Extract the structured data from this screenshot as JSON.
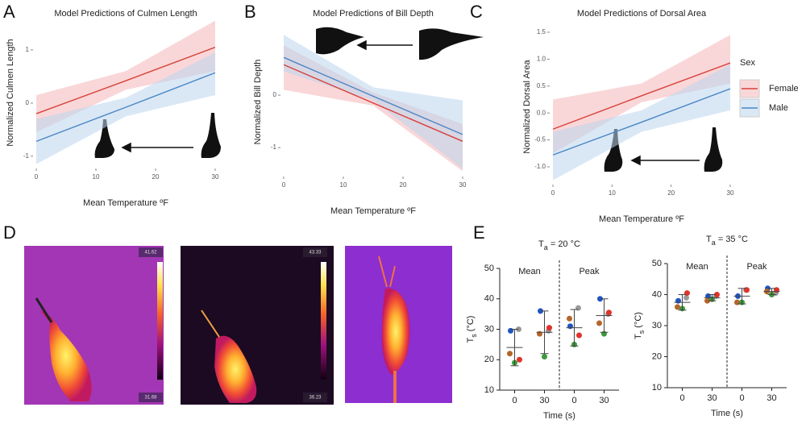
{
  "panel_labels": [
    "A",
    "B",
    "C",
    "D",
    "E"
  ],
  "thermal_images": [
    {
      "max_label": "41.62",
      "min_label": "31.68"
    },
    {
      "max_label": "43.33",
      "min_label": "36.23"
    }
  ],
  "chart_data": [
    {
      "type": "line",
      "title": "Model Predictions of Culmen Length",
      "x_label": "Mean Temperature ºF",
      "y_label": "Normalized Culmen Length",
      "x": [
        0,
        15,
        30
      ],
      "xlim": [
        0,
        30
      ],
      "xticks": [
        0,
        10,
        20,
        30
      ],
      "ylim": [
        -1.17,
        1.56
      ],
      "yticks": [
        -1,
        0,
        1
      ],
      "series": [
        {
          "color": "#d9413c",
          "band_color": "#f4b6b8",
          "values": [
            -0.2,
            0.42,
            1.05
          ],
          "lower": [
            -0.55,
            0.25,
            0.6
          ],
          "upper": [
            0.15,
            0.6,
            1.55
          ]
        },
        {
          "color": "#4a86c5",
          "band_color": "#bcd6ee",
          "values": [
            -0.72,
            -0.08,
            0.57
          ],
          "lower": [
            -1.15,
            -0.25,
            0.15
          ],
          "upper": [
            -0.3,
            0.1,
            0.95
          ]
        }
      ]
    },
    {
      "type": "line",
      "title": "Model Predictions of Bill Depth",
      "x_label": "Mean Temperature ºF",
      "y_label": "Normalized Bill Depth",
      "x": [
        0,
        15,
        30
      ],
      "xlim": [
        0,
        30
      ],
      "xticks": [
        0,
        10,
        20,
        30
      ],
      "ylim": [
        -1.49,
        1.23
      ],
      "yticks": [
        -1,
        0
      ],
      "series": [
        {
          "color": "#d9413c",
          "band_color": "#f4b6b8",
          "values": [
            0.58,
            -0.15,
            -0.88
          ],
          "lower": [
            0.1,
            -0.2,
            -1.45
          ],
          "upper": [
            0.95,
            0.05,
            -0.55
          ]
        },
        {
          "color": "#4a86c5",
          "band_color": "#bcd6ee",
          "values": [
            0.72,
            -0.02,
            -0.75
          ],
          "lower": [
            0.45,
            -0.1,
            -1.4
          ],
          "upper": [
            1.15,
            0.15,
            -0.1
          ]
        }
      ]
    },
    {
      "type": "line",
      "title": "Model Predictions of Dorsal Area",
      "x_label": "Mean Temperature ºF",
      "y_label": "Normalized Dorsal Area",
      "x": [
        0,
        15,
        30
      ],
      "xlim": [
        0,
        30
      ],
      "xticks": [
        0,
        10,
        20,
        30
      ],
      "ylim": [
        -1.27,
        1.5
      ],
      "yticks": [
        {
          "value": 1.5,
          "label": "1.5"
        },
        {
          "value": 1,
          "label": "1.0"
        },
        {
          "value": 0.5,
          "label": "0.5"
        },
        {
          "value": 0,
          "label": "0.0"
        },
        {
          "value": -0.5,
          "label": "-0.5"
        },
        {
          "value": -1,
          "label": "-1.0"
        }
      ],
      "legend_title": "Sex",
      "legend": "right",
      "series": [
        {
          "name": "Female",
          "color": "#d9413c",
          "band_color": "#f4b6b8",
          "values": [
            -0.3,
            0.32,
            0.93
          ],
          "lower": [
            -0.75,
            0.2,
            0.55
          ],
          "upper": [
            0.25,
            0.55,
            1.45
          ]
        },
        {
          "name": "Male",
          "color": "#4a86c5",
          "band_color": "#bcd6ee",
          "values": [
            -0.78,
            -0.17,
            0.45
          ],
          "lower": [
            -1.25,
            -0.35,
            0.05
          ],
          "upper": [
            -0.35,
            0.05,
            0.9
          ]
        }
      ]
    },
    {
      "type": "dot",
      "title": {
        "main": "T",
        "sub": "a",
        "rest": " = 20 °C"
      },
      "y_label": {
        "main": "T",
        "sub": "s",
        "rest": " (°C)"
      },
      "x_label": "Time (s)",
      "categories": [
        "0",
        "30",
        "0",
        "30"
      ],
      "groups": [
        "Mean",
        "Peak"
      ],
      "ylim": [
        10,
        50
      ],
      "yticks": [
        10,
        20,
        30,
        40,
        50
      ],
      "mean": [
        24,
        29,
        30.5,
        34.5
      ],
      "sd": [
        6,
        7,
        6,
        5.5
      ],
      "series": [
        {
          "color": "#1f55c4",
          "values": [
            29.5,
            36,
            31,
            40
          ]
        },
        {
          "color": "#9a9a9a",
          "values": [
            30,
            29.5,
            37,
            35
          ]
        },
        {
          "color": "#e0342a",
          "values": [
            20,
            30.5,
            28,
            35.5
          ]
        },
        {
          "color": "#b5652a",
          "values": [
            22,
            28.5,
            33.5,
            32
          ]
        },
        {
          "color": "#3c9a3c",
          "values": [
            19,
            21,
            25,
            28.5
          ]
        }
      ]
    },
    {
      "type": "dot",
      "title": {
        "main": "T",
        "sub": "a",
        "rest": " = 35 °C"
      },
      "y_label": {
        "main": "T",
        "sub": "s",
        "rest": " (°C)"
      },
      "x_label": "Time (s)",
      "categories": [
        "0",
        "30",
        "0",
        "30"
      ],
      "groups": [
        "Mean",
        "Peak"
      ],
      "ylim": [
        10,
        50
      ],
      "yticks": [
        10,
        20,
        30,
        40,
        50
      ],
      "mean": [
        37.5,
        39,
        39.5,
        41
      ],
      "sd": [
        2.5,
        1,
        2.5,
        1
      ],
      "series": [
        {
          "color": "#1f55c4",
          "values": [
            38,
            39.5,
            39.5,
            42
          ]
        },
        {
          "color": "#9a9a9a",
          "values": [
            39,
            39.5,
            41.5,
            40.5
          ]
        },
        {
          "color": "#e0342a",
          "values": [
            40.5,
            40,
            41.5,
            41.5
          ]
        },
        {
          "color": "#b5652a",
          "values": [
            36,
            38,
            37.5,
            41
          ]
        },
        {
          "color": "#3c9a3c",
          "values": [
            35.5,
            38.5,
            37.5,
            40
          ]
        }
      ]
    }
  ]
}
